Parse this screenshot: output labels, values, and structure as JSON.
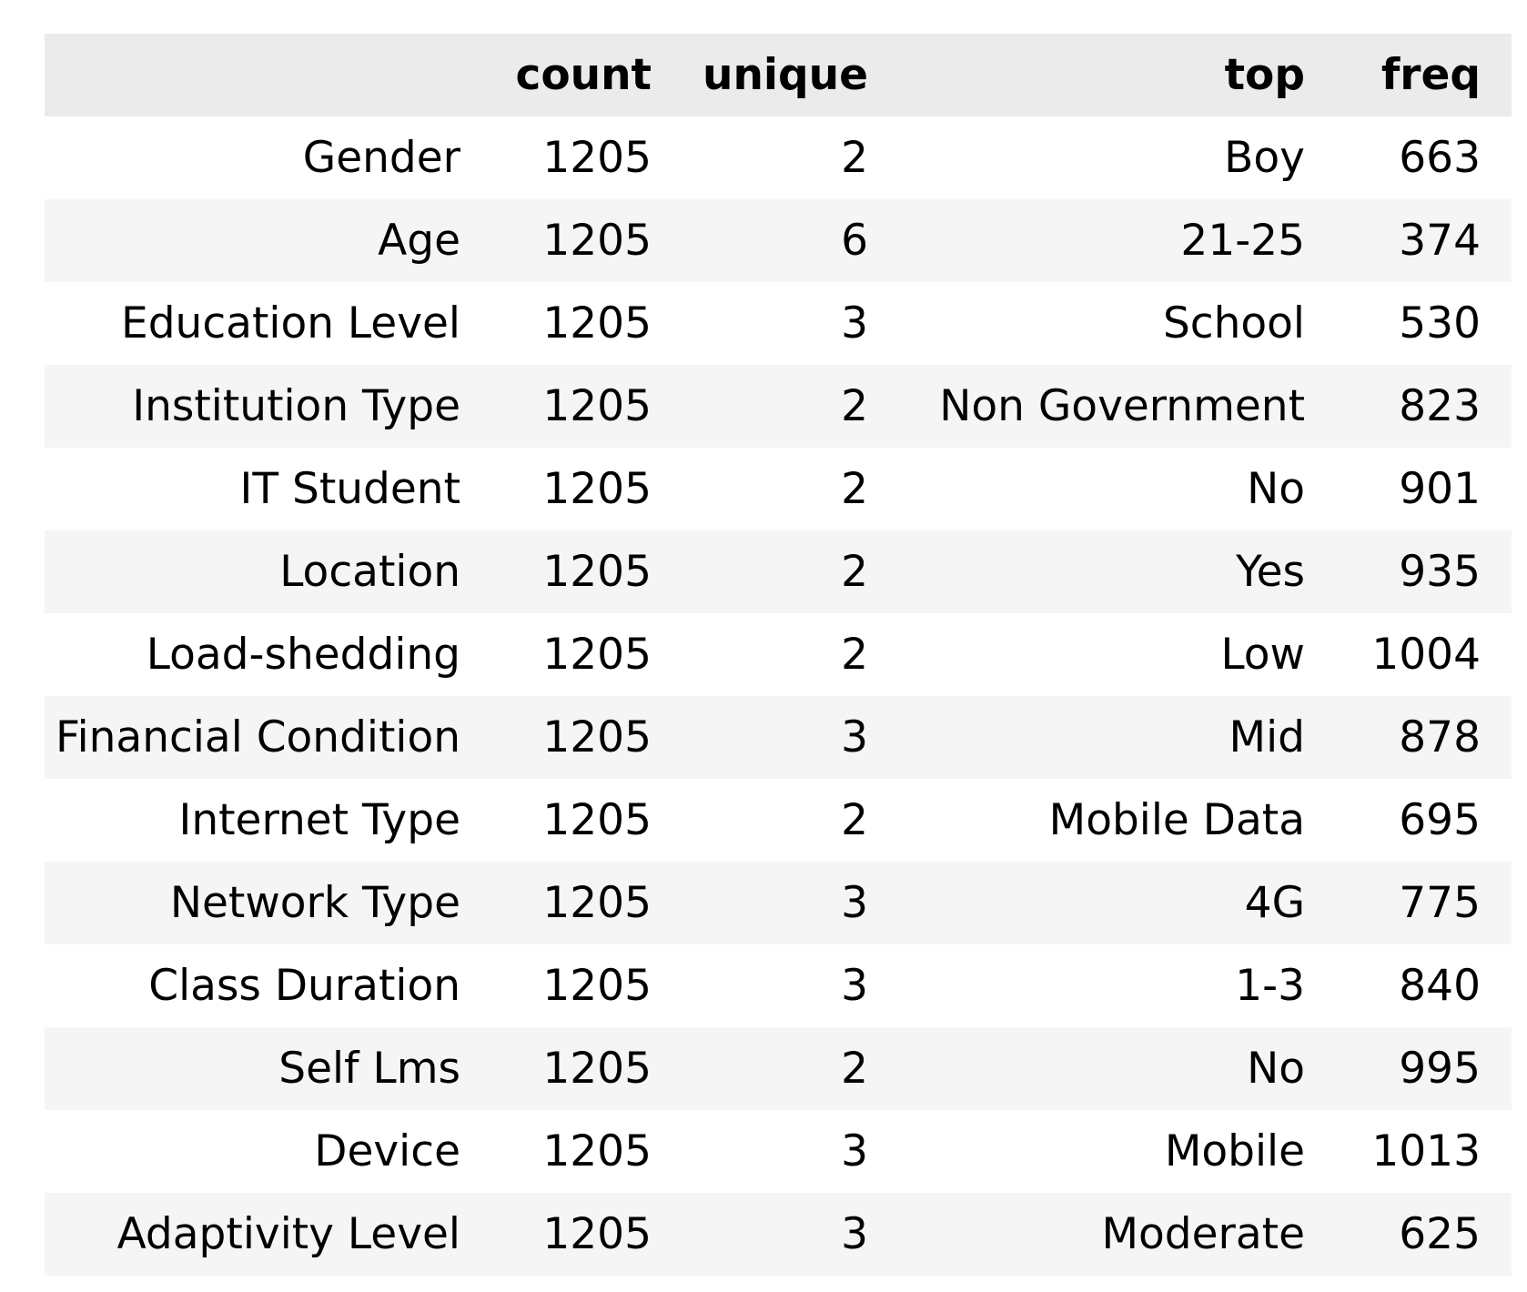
{
  "table": {
    "columns": [
      "",
      "count",
      "unique",
      "top",
      "freq"
    ],
    "rows": [
      {
        "label": "Gender",
        "count": "1205",
        "unique": "2",
        "top": "Boy",
        "freq": "663"
      },
      {
        "label": "Age",
        "count": "1205",
        "unique": "6",
        "top": "21-25",
        "freq": "374"
      },
      {
        "label": "Education Level",
        "count": "1205",
        "unique": "3",
        "top": "School",
        "freq": "530"
      },
      {
        "label": "Institution Type",
        "count": "1205",
        "unique": "2",
        "top": "Non Government",
        "freq": "823"
      },
      {
        "label": "IT Student",
        "count": "1205",
        "unique": "2",
        "top": "No",
        "freq": "901"
      },
      {
        "label": "Location",
        "count": "1205",
        "unique": "2",
        "top": "Yes",
        "freq": "935"
      },
      {
        "label": "Load-shedding",
        "count": "1205",
        "unique": "2",
        "top": "Low",
        "freq": "1004"
      },
      {
        "label": "Financial Condition",
        "count": "1205",
        "unique": "3",
        "top": "Mid",
        "freq": "878"
      },
      {
        "label": "Internet Type",
        "count": "1205",
        "unique": "2",
        "top": "Mobile Data",
        "freq": "695"
      },
      {
        "label": "Network Type",
        "count": "1205",
        "unique": "3",
        "top": "4G",
        "freq": "775"
      },
      {
        "label": "Class Duration",
        "count": "1205",
        "unique": "3",
        "top": "1-3",
        "freq": "840"
      },
      {
        "label": "Self Lms",
        "count": "1205",
        "unique": "2",
        "top": "No",
        "freq": "995"
      },
      {
        "label": "Device",
        "count": "1205",
        "unique": "3",
        "top": "Mobile",
        "freq": "1013"
      },
      {
        "label": "Adaptivity Level",
        "count": "1205",
        "unique": "3",
        "top": "Moderate",
        "freq": "625"
      }
    ]
  }
}
